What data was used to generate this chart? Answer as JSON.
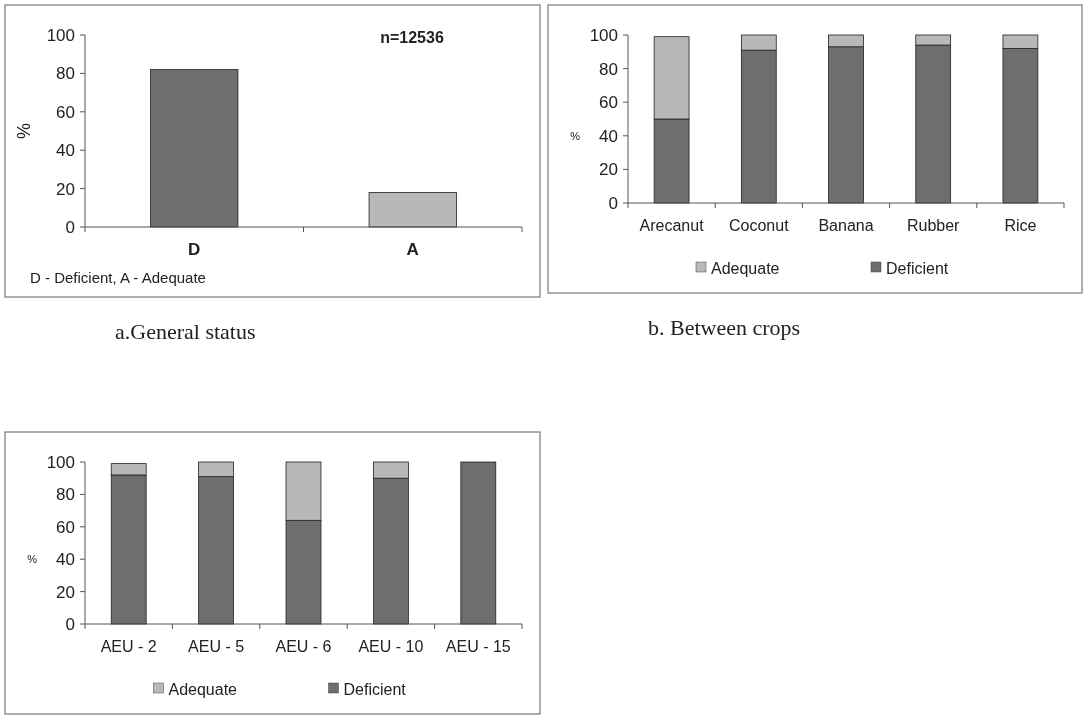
{
  "chart_data": [
    {
      "type": "bar",
      "title": "a.General status",
      "categories": [
        "D",
        "A"
      ],
      "values": [
        82,
        18
      ],
      "colors": [
        "#6e6e6e",
        "#b8b8b8"
      ],
      "ylabel": "%",
      "ylim": [
        0,
        100
      ],
      "yticks": [
        0,
        20,
        40,
        60,
        80,
        100
      ],
      "grid": false,
      "legend": false,
      "annotations": [
        "n=12536",
        "D - Deficient, A - Adequate"
      ]
    },
    {
      "type": "bar",
      "title": "b. Between crops",
      "categories": [
        "Arecanut",
        "Coconut",
        "Banana",
        "Rubber",
        "Rice"
      ],
      "stacked": true,
      "ylabel": "%",
      "ylim": [
        0,
        100
      ],
      "yticks": [
        0,
        20,
        40,
        60,
        80,
        100
      ],
      "grid": false,
      "legend": "bottom",
      "series": [
        {
          "name": "Deficient",
          "color": "#6e6e6e",
          "values": [
            50,
            91,
            93,
            94,
            92
          ]
        },
        {
          "name": "Adequate",
          "color": "#b8b8b8",
          "values": [
            49,
            9,
            7,
            6,
            8
          ]
        }
      ]
    },
    {
      "type": "bar",
      "categories": [
        "AEU - 2",
        "AEU - 5",
        "AEU - 6",
        "AEU - 10",
        "AEU - 15"
      ],
      "stacked": true,
      "ylabel": "%",
      "ylim": [
        0,
        100
      ],
      "yticks": [
        0,
        20,
        40,
        60,
        80,
        100
      ],
      "grid": false,
      "legend": "bottom",
      "series": [
        {
          "name": "Deficient",
          "color": "#6e6e6e",
          "values": [
            92,
            91,
            64,
            90,
            100
          ]
        },
        {
          "name": "Adequate",
          "color": "#b8b8b8",
          "values": [
            7,
            9,
            36,
            10,
            0
          ]
        }
      ]
    }
  ]
}
